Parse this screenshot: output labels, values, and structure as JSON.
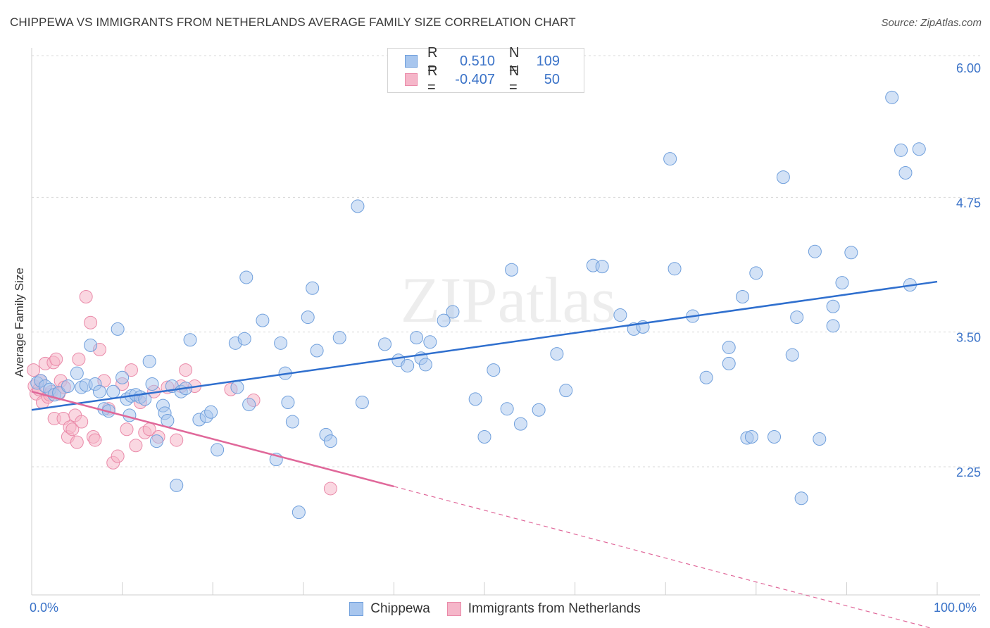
{
  "title": "CHIPPEWA VS IMMIGRANTS FROM NETHERLANDS AVERAGE FAMILY SIZE CORRELATION CHART",
  "source": "Source: ZipAtlas.com",
  "watermark": "ZIPatlas",
  "legend_top": {
    "rows": [
      {
        "r_label": "R =",
        "r_value": "0.510",
        "n_label": "N =",
        "n_value": "109"
      },
      {
        "r_label": "R =",
        "r_value": "-0.407",
        "n_label": "N =",
        "n_value": "50"
      }
    ]
  },
  "legend_bottom": [
    "Chippewa",
    "Immigrants from Netherlands"
  ],
  "colors": {
    "chippewa_fill": "#a8c6ee",
    "chippewa_stroke": "#6f9fdc",
    "chippewa_line": "#2f6fce",
    "netherlands_fill": "#f5b6c9",
    "netherlands_stroke": "#ea8aa9",
    "netherlands_line": "#e0689a",
    "axis_label": "#3b73c8",
    "grid": "#d8d8d8"
  },
  "chart_data": {
    "type": "scatter",
    "title": "CHIPPEWA VS IMMIGRANTS FROM NETHERLANDS AVERAGE FAMILY SIZE CORRELATION CHART",
    "xlabel": "",
    "ylabel": "Average Family Size",
    "xlim": [
      0,
      100
    ],
    "ylim": [
      1.25,
      6.1
    ],
    "x_tick_labels": [
      "0.0%",
      "100.0%"
    ],
    "y_ticks": [
      2.25,
      3.5,
      4.75,
      6.0
    ],
    "y_tick_labels": [
      "2.25",
      "3.50",
      "4.75",
      "6.00"
    ],
    "grid": true,
    "series": [
      {
        "name": "Chippewa",
        "r": 0.51,
        "n": 109,
        "trend": {
          "x0": 0,
          "y0": 2.83,
          "x1": 100,
          "y1": 4.02
        },
        "points": [
          [
            0.6,
            3.08
          ],
          [
            1.0,
            3.1
          ],
          [
            1.5,
            3.05
          ],
          [
            2.0,
            3.02
          ],
          [
            2.5,
            2.97
          ],
          [
            3.0,
            2.99
          ],
          [
            4.0,
            3.05
          ],
          [
            5.0,
            3.17
          ],
          [
            5.5,
            3.04
          ],
          [
            6.0,
            3.06
          ],
          [
            6.5,
            3.43
          ],
          [
            7.0,
            3.07
          ],
          [
            7.5,
            3.0
          ],
          [
            8.0,
            2.84
          ],
          [
            9.0,
            3.0
          ],
          [
            8.5,
            2.82
          ],
          [
            9.5,
            3.58
          ],
          [
            10.0,
            3.13
          ],
          [
            10.5,
            2.93
          ],
          [
            10.8,
            2.78
          ],
          [
            11.0,
            2.96
          ],
          [
            11.5,
            2.97
          ],
          [
            12.0,
            2.95
          ],
          [
            12.5,
            2.93
          ],
          [
            13.0,
            3.28
          ],
          [
            13.3,
            3.07
          ],
          [
            13.8,
            2.54
          ],
          [
            14.5,
            2.87
          ],
          [
            14.7,
            2.8
          ],
          [
            15.0,
            2.73
          ],
          [
            15.5,
            3.05
          ],
          [
            16.0,
            2.13
          ],
          [
            16.5,
            3.0
          ],
          [
            17.0,
            3.03
          ],
          [
            17.5,
            3.48
          ],
          [
            18.5,
            2.74
          ],
          [
            19.3,
            2.77
          ],
          [
            19.8,
            2.81
          ],
          [
            20.5,
            2.46
          ],
          [
            22.5,
            3.45
          ],
          [
            22.7,
            3.04
          ],
          [
            23.5,
            3.49
          ],
          [
            23.7,
            4.06
          ],
          [
            24.0,
            2.88
          ],
          [
            25.5,
            3.66
          ],
          [
            27.0,
            2.37
          ],
          [
            27.5,
            3.45
          ],
          [
            28.0,
            3.17
          ],
          [
            28.3,
            2.9
          ],
          [
            28.8,
            2.72
          ],
          [
            29.5,
            1.88
          ],
          [
            30.5,
            3.69
          ],
          [
            31.0,
            3.96
          ],
          [
            31.5,
            3.38
          ],
          [
            32.5,
            2.6
          ],
          [
            33.0,
            2.54
          ],
          [
            34.0,
            3.5
          ],
          [
            36.5,
            2.9
          ],
          [
            36.0,
            4.72
          ],
          [
            39.0,
            3.44
          ],
          [
            40.5,
            3.29
          ],
          [
            41.5,
            3.24
          ],
          [
            42.5,
            3.5
          ],
          [
            43.0,
            3.31
          ],
          [
            43.5,
            3.25
          ],
          [
            44.0,
            3.46
          ],
          [
            45.5,
            3.66
          ],
          [
            46.5,
            3.74
          ],
          [
            49.0,
            2.93
          ],
          [
            50.0,
            2.58
          ],
          [
            51.0,
            3.2
          ],
          [
            52.5,
            2.84
          ],
          [
            53.0,
            4.13
          ],
          [
            54.0,
            2.7
          ],
          [
            56.0,
            2.83
          ],
          [
            58.0,
            3.35
          ],
          [
            59.0,
            3.01
          ],
          [
            62.0,
            4.17
          ],
          [
            63.0,
            4.16
          ],
          [
            65.0,
            3.71
          ],
          [
            66.5,
            3.58
          ],
          [
            67.5,
            3.6
          ],
          [
            70.5,
            5.16
          ],
          [
            71.0,
            4.14
          ],
          [
            73.0,
            3.7
          ],
          [
            74.5,
            3.13
          ],
          [
            77.0,
            3.41
          ],
          [
            77.0,
            3.26
          ],
          [
            78.5,
            3.88
          ],
          [
            79.0,
            2.57
          ],
          [
            79.5,
            2.58
          ],
          [
            80.0,
            4.1
          ],
          [
            82.0,
            2.58
          ],
          [
            83.0,
            4.99
          ],
          [
            84.0,
            3.34
          ],
          [
            84.5,
            3.69
          ],
          [
            85.0,
            2.01
          ],
          [
            86.5,
            4.3
          ],
          [
            87.0,
            2.56
          ],
          [
            88.5,
            3.61
          ],
          [
            88.5,
            3.79
          ],
          [
            89.5,
            4.01
          ],
          [
            90.5,
            4.29
          ],
          [
            95.0,
            5.73
          ],
          [
            96.0,
            5.24
          ],
          [
            96.5,
            5.03
          ],
          [
            97.0,
            3.99
          ],
          [
            98.0,
            5.25
          ]
        ]
      },
      {
        "name": "Immigrants from Netherlands",
        "r": -0.407,
        "n": 50,
        "trend": {
          "x0": 0,
          "y0": 3.0,
          "x1": 40,
          "y1": 2.12,
          "dashed_to": {
            "x": 100,
            "y": 0.79
          }
        },
        "points": [
          [
            0.3,
            3.05
          ],
          [
            0.5,
            2.98
          ],
          [
            0.8,
            3.02
          ],
          [
            1.0,
            3.1
          ],
          [
            1.2,
            2.9
          ],
          [
            1.5,
            3.26
          ],
          [
            1.8,
            2.95
          ],
          [
            2.0,
            2.97
          ],
          [
            2.2,
            3.0
          ],
          [
            2.4,
            3.27
          ],
          [
            2.5,
            2.75
          ],
          [
            2.7,
            3.3
          ],
          [
            3.0,
            2.98
          ],
          [
            3.2,
            3.1
          ],
          [
            3.5,
            2.75
          ],
          [
            3.6,
            3.04
          ],
          [
            4.0,
            2.58
          ],
          [
            4.2,
            2.67
          ],
          [
            4.5,
            2.65
          ],
          [
            4.8,
            2.78
          ],
          [
            5.0,
            2.53
          ],
          [
            5.2,
            3.3
          ],
          [
            5.5,
            2.72
          ],
          [
            6.0,
            3.88
          ],
          [
            6.5,
            3.64
          ],
          [
            6.8,
            2.58
          ],
          [
            7.0,
            2.55
          ],
          [
            7.5,
            3.39
          ],
          [
            8.0,
            3.1
          ],
          [
            8.5,
            2.84
          ],
          [
            9.0,
            2.34
          ],
          [
            9.5,
            2.4
          ],
          [
            10.0,
            3.07
          ],
          [
            10.5,
            2.65
          ],
          [
            11.0,
            3.2
          ],
          [
            11.5,
            2.5
          ],
          [
            12.0,
            2.9
          ],
          [
            12.5,
            2.62
          ],
          [
            13.0,
            2.65
          ],
          [
            13.5,
            3.0
          ],
          [
            14.0,
            2.58
          ],
          [
            15.0,
            3.04
          ],
          [
            16.0,
            2.55
          ],
          [
            16.5,
            3.05
          ],
          [
            17.0,
            3.2
          ],
          [
            18.0,
            3.05
          ],
          [
            22.0,
            3.02
          ],
          [
            24.5,
            2.92
          ],
          [
            33.0,
            2.1
          ],
          [
            0.2,
            3.2
          ]
        ]
      }
    ]
  }
}
